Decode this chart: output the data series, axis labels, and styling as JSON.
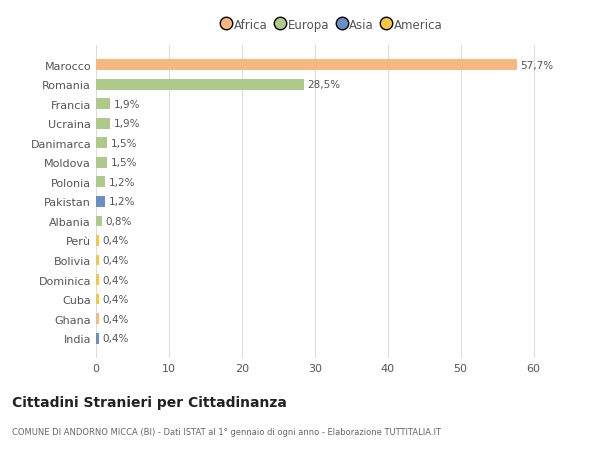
{
  "categories": [
    "Marocco",
    "Romania",
    "Francia",
    "Ucraina",
    "Danimarca",
    "Moldova",
    "Polonia",
    "Pakistan",
    "Albania",
    "Perù",
    "Bolivia",
    "Dominica",
    "Cuba",
    "Ghana",
    "India"
  ],
  "values": [
    57.7,
    28.5,
    1.9,
    1.9,
    1.5,
    1.5,
    1.2,
    1.2,
    0.8,
    0.4,
    0.4,
    0.4,
    0.4,
    0.4,
    0.4
  ],
  "labels": [
    "57,7%",
    "28,5%",
    "1,9%",
    "1,9%",
    "1,5%",
    "1,5%",
    "1,2%",
    "1,2%",
    "0,8%",
    "0,4%",
    "0,4%",
    "0,4%",
    "0,4%",
    "0,4%",
    "0,4%"
  ],
  "colors": [
    "#f5b880",
    "#aec98a",
    "#aec98a",
    "#aec98a",
    "#aec98a",
    "#aec98a",
    "#aec98a",
    "#6b8ec4",
    "#aec98a",
    "#f5c842",
    "#f5c842",
    "#f5c842",
    "#f5c842",
    "#f5b880",
    "#6b8ec4"
  ],
  "legend_labels": [
    "Africa",
    "Europa",
    "Asia",
    "America"
  ],
  "legend_colors": [
    "#f5b880",
    "#aec98a",
    "#6b8ec4",
    "#f5c842"
  ],
  "xlim": [
    0,
    65
  ],
  "xticks": [
    0,
    10,
    20,
    30,
    40,
    50,
    60
  ],
  "title": "Cittadini Stranieri per Cittadinanza",
  "subtitle": "COMUNE DI ANDORNO MICCA (BI) - Dati ISTAT al 1° gennaio di ogni anno - Elaborazione TUTTITALIA.IT",
  "background_color": "#ffffff",
  "grid_color": "#dddddd"
}
